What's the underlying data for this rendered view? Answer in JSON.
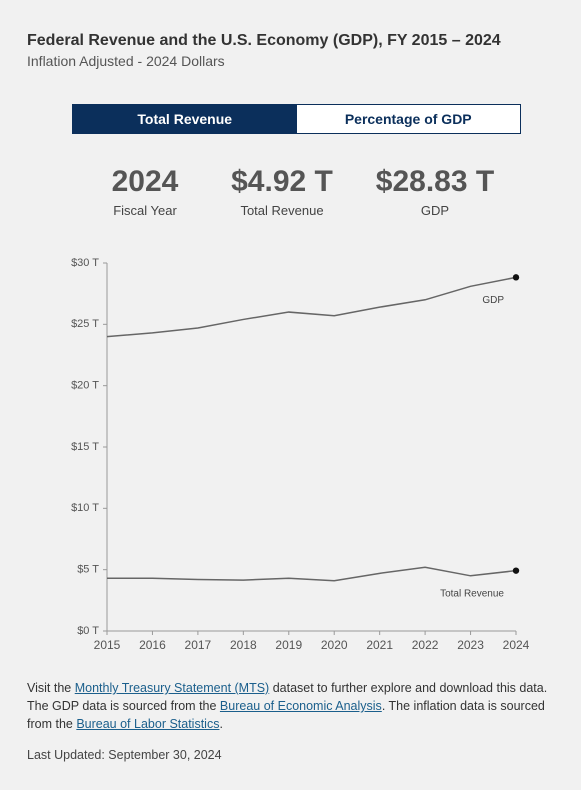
{
  "chart_data": {
    "type": "line",
    "title": "Federal Revenue and the U.S. Economy (GDP), FY 2015 – 2024",
    "subtitle": "Inflation Adjusted - 2024 Dollars",
    "x": [
      2015,
      2016,
      2017,
      2018,
      2019,
      2020,
      2021,
      2022,
      2023,
      2024
    ],
    "xlim": [
      2015,
      2024
    ],
    "xticks": [
      2015,
      2016,
      2017,
      2018,
      2019,
      2020,
      2021,
      2022,
      2023,
      2024
    ],
    "ylim": [
      0,
      30
    ],
    "yticks": [
      {
        "value": 0,
        "label": "$0 T"
      },
      {
        "value": 5,
        "label": "$5 T"
      },
      {
        "value": 10,
        "label": "$10 T"
      },
      {
        "value": 15,
        "label": "$15 T"
      },
      {
        "value": 20,
        "label": "$20 T"
      },
      {
        "value": 25,
        "label": "$25 T"
      },
      {
        "value": 30,
        "label": "$30 T"
      }
    ],
    "grid": false,
    "series": [
      {
        "name": "GDP",
        "color": "#666666",
        "values": [
          24.0,
          24.3,
          24.7,
          25.4,
          26.0,
          25.7,
          26.4,
          27.0,
          28.1,
          28.83
        ]
      },
      {
        "name": "Total Revenue",
        "color": "#666666",
        "values": [
          4.3,
          4.3,
          4.2,
          4.15,
          4.3,
          4.1,
          4.7,
          5.2,
          4.5,
          4.92
        ]
      }
    ]
  },
  "tabs": [
    "Total Revenue",
    "Percentage of GDP"
  ],
  "active_tab": 0,
  "stats": [
    {
      "value": "2024",
      "label": "Fiscal Year"
    },
    {
      "value": "$4.92 T",
      "label": "Total Revenue"
    },
    {
      "value": "$28.83 T",
      "label": "GDP"
    }
  ],
  "footnote": [
    {
      "text": "Visit the "
    },
    {
      "text": "Monthly Treasury Statement (MTS)",
      "link": true
    },
    {
      "text": " dataset to further explore and download this data. The GDP data is sourced from the "
    },
    {
      "text": "Bureau of Economic Analysis",
      "link": true
    },
    {
      "text": ". The inflation data is sourced from the "
    },
    {
      "text": "Bureau of Labor Statistics",
      "link": true
    },
    {
      "text": "."
    }
  ],
  "last_updated": "Last Updated: September 30, 2024"
}
